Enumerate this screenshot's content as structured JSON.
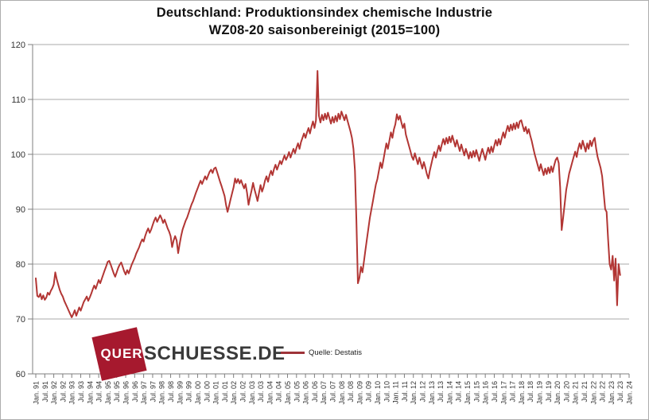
{
  "title": {
    "line1": "Deutschland: Produktionsindex chemische Industrie",
    "line2": "WZ08-20 saisonbereinigt (2015=100)"
  },
  "legend": {
    "label": "Quelle: Destatis",
    "line_color": "#9e3339"
  },
  "logo": {
    "part1": "QUER",
    "part2": "SCHUESSE.DE",
    "square_color": "#a6192e",
    "part1_color": "#ffffff",
    "part2_color": "#3a3a3a"
  },
  "colors": {
    "line": "#b23634",
    "grid": "#a8a8a8",
    "axis": "#7f7f7f",
    "tick_text": "#333333",
    "background": "#ffffff"
  },
  "chart_data": {
    "type": "line",
    "title": "Deutschland: Produktionsindex chemische Industrie WZ08-20 saisonbereinigt (2015=100)",
    "xlabel": "",
    "ylabel": "",
    "ylim": [
      60,
      120
    ],
    "yticks": [
      60,
      70,
      80,
      90,
      100,
      110,
      120
    ],
    "grid": "horizontal",
    "legend_position": "bottom-center",
    "x_start": "Jan 1991",
    "x_axis_end": "Jan 2024",
    "frequency": "monthly",
    "x_tick_labels": [
      "Jan. 91",
      "Jul. 91",
      "Jan. 92",
      "Jul. 92",
      "Jan. 93",
      "Jul. 93",
      "Jan. 94",
      "Jul. 94",
      "Jan. 95",
      "Jul. 95",
      "Jan. 96",
      "Jul. 96",
      "Jan. 97",
      "Jul. 97",
      "Jan. 98",
      "Jul. 98",
      "Jan. 99",
      "Jul. 99",
      "Jan. 00",
      "Jul. 00",
      "Jan. 01",
      "Jul. 01",
      "Jan. 02",
      "Jul. 02",
      "Jan. 03",
      "Jul. 03",
      "Jan. 04",
      "Jul. 04",
      "Jan. 05",
      "Jul. 05",
      "Jan. 06",
      "Jul. 06",
      "Jan. 07",
      "Jul. 07",
      "Jan. 08",
      "Jul. 08",
      "Jan. 09",
      "Jul. 09",
      "Jan. 10",
      "Jul. 10",
      "Jan. 11",
      "Jul. 11",
      "Jan. 12",
      "Jul. 12",
      "Jan. 13",
      "Jul. 13",
      "Jan. 14",
      "Jul. 14",
      "Jan. 15",
      "Jul. 15",
      "Jan. 16",
      "Jul. 16",
      "Jan. 17",
      "Jul. 17",
      "Jan. 18",
      "Jul. 18",
      "Jan. 19",
      "Jul. 19",
      "Jan. 20",
      "Jul. 20",
      "Jan. 21",
      "Jul. 21",
      "Jan. 22",
      "Jul. 22",
      "Jan. 23",
      "Jul. 23",
      "Jan. 24"
    ],
    "series": [
      {
        "name": "Produktionsindex chemische Industrie (Quelle: Destatis)",
        "start": "1991-01",
        "values_by_year": {
          "1991": [
            77.4,
            74.2,
            74.0,
            74.6,
            73.6,
            74.3,
            73.5,
            73.9,
            74.8,
            74.4,
            75.1,
            75.6
          ],
          "1992": [
            76.3,
            78.5,
            77.2,
            76.2,
            75.3,
            74.6,
            74.1,
            73.3,
            72.7,
            72.1,
            71.5,
            70.9
          ],
          "1993": [
            70.3,
            70.9,
            71.6,
            70.6,
            71.3,
            72.1,
            71.5,
            72.3,
            73.1,
            73.6,
            74.1,
            73.3
          ],
          "1994": [
            73.9,
            74.6,
            75.4,
            76.1,
            75.5,
            76.3,
            77.1,
            76.5,
            77.3,
            78.1,
            78.9,
            79.6
          ],
          "1995": [
            80.4,
            80.6,
            79.9,
            79.1,
            78.3,
            77.7,
            78.5,
            79.3,
            79.9,
            80.3,
            79.5,
            78.7
          ],
          "1996": [
            78.1,
            78.9,
            78.3,
            79.1,
            79.9,
            80.5,
            81.1,
            81.9,
            82.5,
            83.1,
            83.9,
            84.5
          ],
          "1997": [
            84.1,
            85.1,
            85.9,
            86.5,
            85.7,
            86.3,
            87.1,
            87.9,
            88.5,
            87.7,
            88.3,
            88.9
          ],
          "1998": [
            88.3,
            87.5,
            88.1,
            87.3,
            86.5,
            85.9,
            85.1,
            83.1,
            84.3,
            85.1,
            84.3,
            82.0
          ],
          "1999": [
            83.6,
            85.1,
            86.3,
            87.1,
            87.9,
            88.5,
            89.3,
            90.1,
            90.9,
            91.5,
            92.3,
            93.1
          ],
          "2000": [
            93.8,
            94.5,
            95.2,
            94.6,
            95.3,
            96.0,
            95.4,
            96.1,
            96.8,
            97.2,
            96.6,
            97.4
          ],
          "2001": [
            97.6,
            96.8,
            95.9,
            95.0,
            94.2,
            93.3,
            92.4,
            90.8,
            89.5,
            90.6,
            91.8,
            92.9
          ],
          "2002": [
            94.0,
            95.6,
            94.8,
            95.5,
            94.7,
            95.3,
            94.5,
            93.8,
            94.6,
            93.0,
            90.8,
            92.2
          ],
          "2003": [
            93.4,
            94.8,
            93.6,
            92.6,
            91.5,
            93.0,
            94.4,
            93.2,
            94.0,
            95.2,
            96.0,
            95.0
          ],
          "2004": [
            96.2,
            97.0,
            96.2,
            97.3,
            98.1,
            97.2,
            98.0,
            98.8,
            98.2,
            99.0,
            99.8,
            99.0
          ],
          "2005": [
            99.6,
            100.4,
            99.4,
            100.2,
            101.0,
            100.2,
            101.2,
            102.0,
            101.0,
            102.2,
            103.0,
            103.8
          ],
          "2006": [
            103.0,
            104.0,
            104.8,
            103.8,
            105.0,
            106.0,
            104.8,
            106.2,
            115.2,
            107.0,
            105.8,
            107.2
          ],
          "2007": [
            106.2,
            107.4,
            106.4,
            107.6,
            106.6,
            105.6,
            106.8,
            105.8,
            107.0,
            106.0,
            107.4,
            106.4
          ],
          "2008": [
            107.8,
            107.0,
            106.2,
            107.2,
            106.2,
            105.2,
            104.2,
            103.0,
            101.0,
            97.0,
            88.0,
            76.5
          ],
          "2009": [
            77.5,
            79.5,
            78.5,
            80.5,
            82.5,
            84.5,
            86.5,
            88.5,
            90.0,
            91.5,
            93.0,
            94.5
          ],
          "2010": [
            95.5,
            97.0,
            98.5,
            97.5,
            99.0,
            100.5,
            102.0,
            101.0,
            102.5,
            104.0,
            103.0,
            104.5
          ],
          "2011": [
            105.5,
            107.3,
            106.3,
            107.0,
            105.8,
            104.8,
            105.6,
            103.6,
            102.6,
            101.6,
            100.6,
            99.6
          ],
          "2012": [
            99.0,
            100.2,
            99.2,
            98.2,
            99.4,
            98.4,
            97.4,
            98.6,
            97.6,
            96.4,
            95.6,
            97.0
          ],
          "2013": [
            98.2,
            99.4,
            100.4,
            99.4,
            100.6,
            101.6,
            100.6,
            101.8,
            102.8,
            101.8,
            103.0,
            102.0
          ],
          "2014": [
            103.2,
            102.2,
            103.4,
            102.4,
            101.4,
            102.6,
            101.6,
            100.6,
            101.8,
            100.8,
            99.8,
            101.0
          ],
          "2015": [
            100.2,
            99.2,
            100.4,
            99.4,
            100.6,
            99.6,
            100.8,
            99.8,
            98.8,
            100.0,
            101.0,
            100.0
          ],
          "2016": [
            99.0,
            100.2,
            101.2,
            100.2,
            101.4,
            100.4,
            101.6,
            102.6,
            101.6,
            102.8,
            101.8,
            103.0
          ],
          "2017": [
            104.0,
            103.0,
            104.2,
            105.2,
            104.2,
            105.4,
            104.4,
            105.6,
            104.6,
            105.8,
            104.8,
            106.0
          ],
          "2018": [
            106.2,
            105.2,
            104.2,
            105.0,
            103.8,
            104.6,
            103.4,
            102.4,
            101.2,
            100.0,
            99.0,
            98.0
          ],
          "2019": [
            97.0,
            98.2,
            97.2,
            96.2,
            97.4,
            96.4,
            97.6,
            96.6,
            97.8,
            96.8,
            98.0,
            99.0
          ],
          "2020": [
            99.4,
            98.4,
            94.0,
            86.2,
            88.5,
            91.0,
            93.5,
            95.0,
            96.5,
            97.5,
            98.5,
            99.5
          ],
          "2021": [
            100.5,
            99.5,
            101.0,
            102.0,
            101.0,
            102.5,
            101.5,
            100.5,
            102.0,
            101.0,
            102.5,
            101.5
          ],
          "2022": [
            102.5,
            103.0,
            101.0,
            99.5,
            98.5,
            97.5,
            96.0,
            93.0,
            90.0,
            89.5,
            84.5,
            80.0
          ],
          "2023": [
            79.0,
            81.5,
            77.0,
            81.0,
            72.5,
            80.0,
            78.0
          ]
        }
      }
    ]
  }
}
